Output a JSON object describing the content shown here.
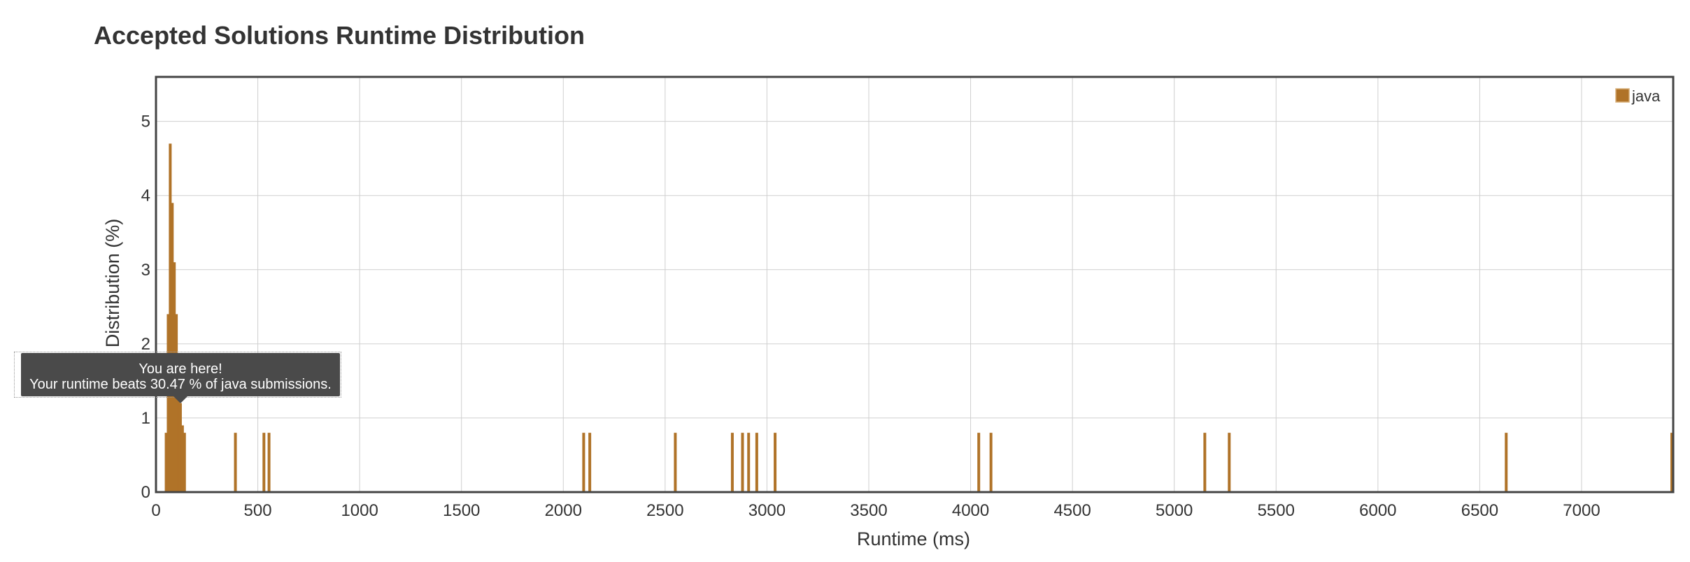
{
  "chart_data": {
    "type": "bar",
    "title": "Accepted Solutions Runtime Distribution",
    "xlabel": "Runtime (ms)",
    "ylabel": "Distribution (%)",
    "xlim": [
      0,
      7450
    ],
    "ylim": [
      0,
      5.6
    ],
    "xticks": [
      0,
      500,
      1000,
      1500,
      2000,
      2500,
      3000,
      3500,
      4000,
      4500,
      5000,
      5500,
      6000,
      6500,
      7000
    ],
    "yticks": [
      0,
      1,
      2,
      3,
      4,
      5
    ],
    "grid": true,
    "legend_position": "top-right",
    "series": [
      {
        "name": "java",
        "color": "#b07328",
        "x": [
          50,
          60,
          70,
          80,
          90,
          100,
          110,
          120,
          130,
          140,
          390,
          530,
          555,
          2100,
          2130,
          2550,
          2830,
          2880,
          2910,
          2950,
          3040,
          4040,
          4100,
          5150,
          5270,
          6630,
          7450
        ],
        "values": [
          0.8,
          2.4,
          4.7,
          3.9,
          3.1,
          2.4,
          1.5,
          1.2,
          0.9,
          0.8,
          0.8,
          0.8,
          0.8,
          0.8,
          0.8,
          0.8,
          0.8,
          0.8,
          0.8,
          0.8,
          0.8,
          0.8,
          0.8,
          0.8,
          0.8,
          0.8,
          0.8
        ]
      }
    ]
  },
  "tooltip": {
    "line1": "You are here!",
    "line2": "Your runtime beats 30.47 % of java submissions."
  }
}
